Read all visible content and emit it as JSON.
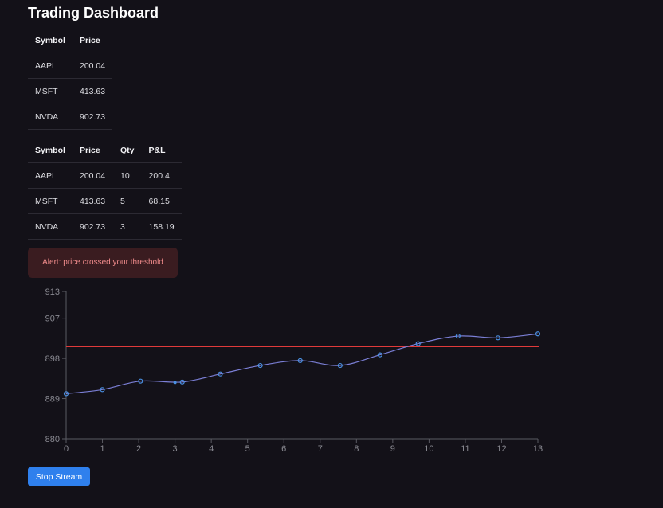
{
  "header": {
    "title": "Trading Dashboard"
  },
  "prices_table": {
    "columns": [
      "Symbol",
      "Price"
    ],
    "rows": [
      [
        "AAPL",
        "200.04"
      ],
      [
        "MSFT",
        "413.63"
      ],
      [
        "NVDA",
        "902.73"
      ]
    ]
  },
  "positions_table": {
    "columns": [
      "Symbol",
      "Price",
      "Qty",
      "P&L"
    ],
    "rows": [
      [
        "AAPL",
        "200.04",
        "10",
        "200.4"
      ],
      [
        "MSFT",
        "413.63",
        "5",
        "68.15"
      ],
      [
        "NVDA",
        "902.73",
        "3",
        "158.19"
      ]
    ]
  },
  "alert": {
    "text": "Alert: price crossed your threshold"
  },
  "controls": {
    "stop_label": "Stop Stream"
  },
  "colors": {
    "line": "#7b7fd6",
    "point": "#4a90e2",
    "threshold": "#e03a3a",
    "axis": "#5a5a62",
    "button": "#2f80ed",
    "alert_bg": "#3a1c20",
    "alert_text": "#f08b8b"
  },
  "chart_data": {
    "type": "line",
    "x": [
      0,
      1,
      2.05,
      3.2,
      4.25,
      5.35,
      6.45,
      7.55,
      8.65,
      9.7,
      10.8,
      11.9,
      13
    ],
    "values": [
      890.1,
      891.0,
      892.9,
      892.7,
      894.5,
      896.4,
      897.5,
      896.4,
      898.8,
      901.3,
      903.0,
      902.6,
      903.5
    ],
    "extra_point": {
      "x": 3.0,
      "y": 892.6
    },
    "threshold": 900.6,
    "xlim": [
      0,
      13
    ],
    "ylim": [
      880,
      913
    ],
    "xticks": [
      "0",
      "1",
      "2",
      "3",
      "4",
      "5",
      "6",
      "7",
      "8",
      "9",
      "10",
      "11",
      "12",
      "13"
    ],
    "yticks": [
      "880",
      "889",
      "898",
      "907",
      "913"
    ],
    "grid": false
  }
}
